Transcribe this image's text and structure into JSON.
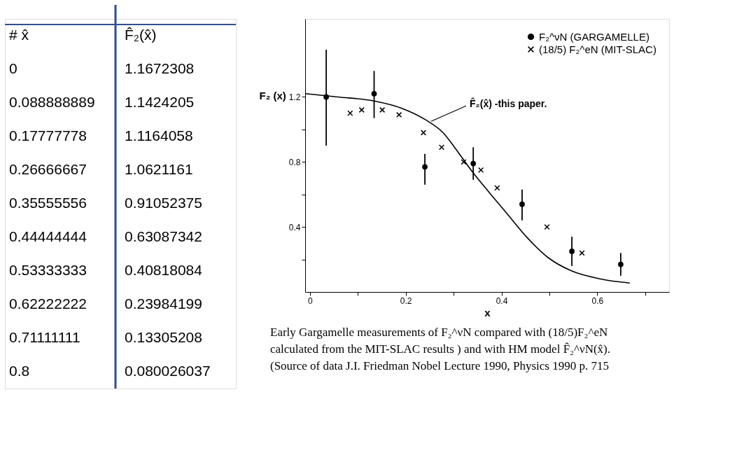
{
  "chart_data": [
    {
      "type": "other",
      "annotations": [
        "# x̂",
        "F̂₂(x̂)",
        "0",
        "1.1672308",
        "0.088888889",
        "1.1424205",
        "0.17777778",
        "1.1164058",
        "0.26666667",
        "1.0621161",
        "0.35555556",
        "0.91052375",
        "0.44444444",
        "0.63087342",
        "0.53333333",
        "0.40818084",
        "0.62222222",
        "0.23984199",
        "0.71111111",
        "0.13305208",
        "0.8",
        "0.080026037"
      ]
    },
    {
      "type": "scatter",
      "xlabel": "x",
      "ylabel": "F₂ (x)",
      "xlim": [
        -0.01,
        0.75
      ],
      "ylim": [
        0,
        1.68
      ],
      "xticks": [
        0,
        {
          "value": 0.1,
          "label": null
        },
        0.2,
        {
          "value": 0.3,
          "label": null
        },
        0.4,
        {
          "value": 0.5,
          "label": null
        },
        0.6,
        {
          "value": 0.7,
          "label": null
        }
      ],
      "yticks": [
        {
          "value": 0.2,
          "label": null
        },
        0.4,
        {
          "value": 0.6,
          "label": null
        },
        0.8,
        {
          "value": 1.0,
          "label": null
        },
        1.2
      ],
      "grid": false,
      "legend": "top right",
      "series": [
        {
          "name": "F₂^νN (GARGAMELLE)",
          "type": "scatter",
          "marker": "circle",
          "color": "#000000",
          "x": [
            0.034,
            0.134,
            0.24,
            0.341,
            0.443,
            0.547,
            0.649
          ],
          "values": [
            1.2,
            1.22,
            0.77,
            0.79,
            0.54,
            0.25,
            0.17
          ],
          "errors": [
            [
              0.9,
              1.49
            ],
            [
              1.07,
              1.36
            ],
            [
              0.66,
              0.85
            ],
            [
              0.69,
              0.89
            ],
            [
              0.44,
              0.63
            ],
            [
              0.16,
              0.34
            ],
            [
              0.1,
              0.24
            ]
          ]
        },
        {
          "name": "(18/5) F₂^eN (MIT-SLAC)",
          "type": "scatter",
          "marker": "cross",
          "color": "#000000",
          "x": [
            0.084,
            0.108,
            0.151,
            0.186,
            0.237,
            0.275,
            0.321,
            0.357,
            0.391,
            0.495,
            0.568
          ],
          "values": [
            1.1,
            1.12,
            1.12,
            1.09,
            0.98,
            0.89,
            0.8,
            0.75,
            0.64,
            0.4,
            0.24
          ]
        },
        {
          "type": "line",
          "color": "#000000",
          "line_style": "solid",
          "x": [
            -0.009,
            0.058,
            0.134,
            0.192,
            0.241,
            0.278,
            0.302,
            0.339,
            0.375,
            0.412,
            0.455,
            0.498,
            0.546,
            0.607,
            0.668
          ],
          "values": [
            1.22,
            1.2,
            1.175,
            1.13,
            1.06,
            0.98,
            0.89,
            0.74,
            0.61,
            0.48,
            0.33,
            0.21,
            0.13,
            0.08,
            0.055
          ]
        }
      ],
      "annotations": [
        {
          "text": "F̂₂(x̂) -this paper.",
          "x": 0.253,
          "y": 1.05
        },
        "Early Gargamelle measurements of F₂^νN compared with (18/5)F₂^eN calculated from the MIT-SLAC results ) and with HM model F̂₂^νN(x̂). (Source of data J.I. Friedman Nobel Lecture 1990, Physics 1990 p. 715"
      ]
    }
  ]
}
